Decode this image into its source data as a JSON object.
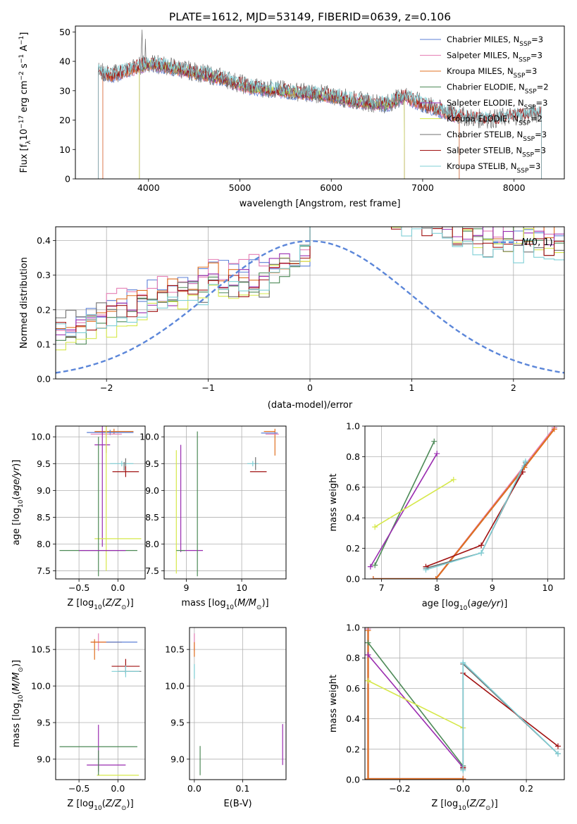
{
  "figure_title": "PLATE=1612, MJD=53149, FIBERID=0639, z=0.106",
  "colors": {
    "Chabrier MILES": "#5b7fd6",
    "Salpeter MILES": "#e57fb5",
    "Kroupa MILES": "#e07020",
    "Chabrier ELODIE": "#4d8a57",
    "Salpeter ELODIE": "#9a2cb0",
    "Kroupa ELODIE": "#d6e84a",
    "Chabrier STELIB": "#707070",
    "Salpeter STELIB": "#a01010",
    "Kroupa STELIB": "#7fcfd6"
  },
  "chart_data": [
    {
      "id": "spectrum",
      "type": "line",
      "title": "PLATE=1612, MJD=53149, FIBERID=0639, z=0.106",
      "xlabel": "wavelength [Angstrom, rest frame]",
      "ylabel": "Flux [f",
      "xlim": [
        3200,
        8550
      ],
      "ylim": [
        0,
        52
      ],
      "xticks": [
        4000,
        5000,
        6000,
        7000,
        8000
      ],
      "yticks": [
        0,
        10,
        20,
        30,
        40,
        50
      ],
      "grid": false,
      "legend_position": "top-right",
      "legend": [
        {
          "name": "Chabrier MILES, N",
          "suffix": "=3"
        },
        {
          "name": "Salpeter MILES, N",
          "suffix": "=3"
        },
        {
          "name": "Kroupa MILES, N",
          "suffix": "=3"
        },
        {
          "name": "Chabrier ELODIE, N",
          "suffix": "=2"
        },
        {
          "name": "Salpeter ELODIE, N",
          "suffix": "=3"
        },
        {
          "name": "Kroupa ELODIE, N",
          "suffix": "=2"
        },
        {
          "name": "Chabrier STELIB, N",
          "suffix": "=3"
        },
        {
          "name": "Salpeter STELIB, N",
          "suffix": "=3"
        },
        {
          "name": "Kroupa STELIB, N",
          "suffix": "=3"
        }
      ],
      "subscript": "SSP",
      "continuum_x": [
        3450,
        3600,
        3800,
        4000,
        4200,
        4500,
        4800,
        5100,
        5400,
        5700,
        6000,
        6300,
        6600,
        6800,
        7000,
        7200,
        7400,
        7600,
        7800,
        8000,
        8300
      ],
      "continuum_y": [
        36,
        35,
        37,
        39,
        38,
        36,
        34,
        31,
        30,
        29,
        28,
        26,
        25,
        28,
        25,
        23,
        21,
        20,
        20,
        21,
        22
      ],
      "spectrum_range": {
        "Chabrier MILES": [
          3500,
          7400
        ],
        "Salpeter MILES": [
          3500,
          7400
        ],
        "Kroupa MILES": [
          3500,
          7400
        ],
        "Chabrier ELODIE": [
          3900,
          6800
        ],
        "Salpeter ELODIE": [
          3900,
          6800
        ],
        "Kroupa ELODIE": [
          3900,
          6800
        ],
        "Chabrier STELIB": [
          3450,
          8300
        ],
        "Salpeter STELIB": [
          3450,
          8300
        ],
        "Kroupa STELIB": [
          3450,
          8300
        ]
      }
    },
    {
      "id": "residuals",
      "type": "line",
      "xlabel": "(data-model)/error",
      "ylabel": "Normed distribution",
      "xlim": [
        -2.5,
        2.5
      ],
      "ylim": [
        0,
        0.44
      ],
      "xticks": [
        -2,
        -1,
        0,
        1,
        2
      ],
      "yticks": [
        0.0,
        0.1,
        0.2,
        0.3,
        0.4
      ],
      "grid": true,
      "legend_position": "top-right",
      "reference_curve": {
        "name": "N(0,1)",
        "mean": 0,
        "sigma": 1,
        "color": "#5b86d9"
      },
      "bin_width": 0.1,
      "series_shape": {
        "Chabrier MILES": [
          0.15,
          0.32,
          0.4,
          0.12
        ],
        "Salpeter MILES": [
          0.14,
          0.33,
          0.4,
          0.11
        ],
        "Kroupa MILES": [
          0.14,
          0.32,
          0.4,
          0.11
        ],
        "Chabrier ELODIE": [
          0.1,
          0.28,
          0.45,
          0.13
        ],
        "Salpeter ELODIE": [
          0.11,
          0.29,
          0.44,
          0.12
        ],
        "Kroupa ELODIE": [
          0.06,
          0.26,
          0.5,
          0.14
        ],
        "Chabrier STELIB": [
          0.15,
          0.27,
          0.5,
          0.11
        ],
        "Salpeter STELIB": [
          0.13,
          0.27,
          0.48,
          0.11
        ],
        "Kroupa STELIB": [
          0.12,
          0.26,
          0.48,
          0.11
        ]
      }
    },
    {
      "id": "age-vs-Z",
      "type": "scatter",
      "xlabel": "Z [log",
      "ylabel": "age  [log",
      "xlim": [
        -0.8,
        0.35
      ],
      "ylim": [
        7.35,
        10.2
      ],
      "xticks": [
        -0.5,
        0.0
      ],
      "yticks": [
        7.5,
        8.0,
        8.5,
        9.0,
        9.5,
        10.0
      ],
      "grid": true,
      "errorbars": [
        {
          "series": "Kroupa MILES",
          "x": -0.05,
          "xerr": 0.25,
          "y": 10.1,
          "yerr": 0.05
        },
        {
          "series": "Chabrier MILES",
          "x": -0.1,
          "xerr": 0.3,
          "y": 10.08,
          "yerr": 0.05
        },
        {
          "series": "Salpeter MILES",
          "x": -0.15,
          "xerr": 0.2,
          "y": 10.05,
          "yerr": 0.35
        },
        {
          "series": "Salpeter ELODIE",
          "x": -0.2,
          "xerr": 0.1,
          "y": 9.85,
          "yerr": 0.0
        },
        {
          "series": "Salpeter ELODIE",
          "x": -0.2,
          "xerr": 0.0,
          "y": 9.85,
          "yerr": 1.9
        },
        {
          "series": "Kroupa ELODIE",
          "x": -0.15,
          "xerr": 0.0,
          "y": 9.8,
          "yerr": 2.3
        },
        {
          "series": "Kroupa ELODIE",
          "x": 0.0,
          "xerr": 0.3,
          "y": 8.1,
          "yerr": 0.0
        },
        {
          "series": "Chabrier ELODIE",
          "x": -0.25,
          "xerr": 0.0,
          "y": 8.7,
          "yerr": 1.3
        },
        {
          "series": "Chabrier ELODIE",
          "x": -0.25,
          "xerr": 0.5,
          "y": 7.88,
          "yerr": 0.0
        },
        {
          "series": "Salpeter ELODIE",
          "x": -0.2,
          "xerr": 0.3,
          "y": 7.88,
          "yerr": 0.0
        },
        {
          "series": "Kroupa STELIB",
          "x": 0.05,
          "xerr": 0.15,
          "y": 9.5,
          "yerr": 0.05
        },
        {
          "series": "Chabrier STELIB",
          "x": 0.1,
          "xerr": 0.0,
          "y": 9.5,
          "yerr": 0.1
        },
        {
          "series": "Salpeter STELIB",
          "x": 0.1,
          "xerr": 0.17,
          "y": 9.35,
          "yerr": 0.1
        },
        {
          "series": "Chabrier STELIB",
          "x": 0.08,
          "xerr": 0.0,
          "y": 9.45,
          "yerr": 0.08
        }
      ]
    },
    {
      "id": "age-vs-mass",
      "type": "scatter",
      "xlabel": "mass [log",
      "ylabel": "",
      "xlim": [
        8.6,
        10.8
      ],
      "ylim": [
        7.35,
        10.2
      ],
      "xticks": [
        9,
        10
      ],
      "yticks": [
        7.5,
        8.0,
        8.5,
        9.0,
        9.5,
        10.0
      ],
      "grid": true,
      "errorbars": [
        {
          "series": "Kroupa MILES",
          "x": 10.5,
          "xerr": 0.1,
          "y": 10.1,
          "yerr": 0.0
        },
        {
          "series": "Kroupa MILES",
          "x": 10.6,
          "xerr": 0.0,
          "y": 9.9,
          "yerr": 0.25
        },
        {
          "series": "Salpeter MILES",
          "x": 10.55,
          "xerr": 0.12,
          "y": 10.05,
          "yerr": 0.0
        },
        {
          "series": "Chabrier MILES",
          "x": 10.5,
          "xerr": 0.15,
          "y": 10.07,
          "yerr": 0.0
        },
        {
          "series": "Kroupa STELIB",
          "x": 10.2,
          "xerr": 0.1,
          "y": 9.5,
          "yerr": 0.05
        },
        {
          "series": "Chabrier STELIB",
          "x": 10.25,
          "xerr": 0.0,
          "y": 9.5,
          "yerr": 0.12
        },
        {
          "series": "Salpeter STELIB",
          "x": 10.3,
          "xerr": 0.15,
          "y": 9.35,
          "yerr": 0.0
        },
        {
          "series": "Salpeter ELODIE",
          "x": 8.9,
          "xerr": 0.0,
          "y": 8.85,
          "yerr": 1.0
        },
        {
          "series": "Salpeter ELODIE",
          "x": 9.1,
          "xerr": 0.2,
          "y": 7.88,
          "yerr": 0.0
        },
        {
          "series": "Chabrier ELODIE",
          "x": 9.2,
          "xerr": 0.0,
          "y": 8.75,
          "yerr": 1.35
        },
        {
          "series": "Kroupa ELODIE",
          "x": 8.82,
          "xerr": 0.0,
          "y": 8.6,
          "yerr": 1.15
        },
        {
          "series": "Chabrier ELODIE",
          "x": 8.9,
          "xerr": 0.08,
          "y": 7.88,
          "yerr": 0.0
        }
      ]
    },
    {
      "id": "mass-weight-vs-age",
      "type": "line",
      "xlabel": "age  [log",
      "ylabel": "mass weight",
      "xlim": [
        6.7,
        10.3
      ],
      "ylim": [
        0,
        1
      ],
      "xticks": [
        7,
        8,
        9,
        10
      ],
      "yticks": [
        0.0,
        0.2,
        0.4,
        0.6,
        0.8,
        1.0
      ],
      "grid": true,
      "series": [
        {
          "name": "Chabrier MILES",
          "x": [
            6.85,
            7.98,
            9.58,
            10.12
          ],
          "y": [
            0.0,
            0.0,
            0.73,
            0.99
          ]
        },
        {
          "name": "Salpeter MILES",
          "x": [
            6.85,
            7.98,
            9.58,
            10.12
          ],
          "y": [
            0.0,
            0.0,
            0.74,
            0.99
          ]
        },
        {
          "name": "Kroupa MILES",
          "x": [
            6.85,
            7.98,
            9.58,
            10.12
          ],
          "y": [
            0.0,
            0.0,
            0.73,
            0.98
          ]
        },
        {
          "name": "Chabrier ELODIE",
          "x": [
            6.88,
            7.95
          ],
          "y": [
            0.09,
            0.9
          ]
        },
        {
          "name": "Salpeter ELODIE",
          "x": [
            6.8,
            8.0
          ],
          "y": [
            0.08,
            0.82
          ]
        },
        {
          "name": "Kroupa ELODIE",
          "x": [
            6.88,
            8.3
          ],
          "y": [
            0.34,
            0.65
          ]
        },
        {
          "name": "Chabrier STELIB",
          "x": [
            7.8,
            8.8,
            9.6
          ],
          "y": [
            0.07,
            0.17,
            0.76
          ]
        },
        {
          "name": "Salpeter STELIB",
          "x": [
            7.8,
            8.8,
            9.55
          ],
          "y": [
            0.08,
            0.22,
            0.7
          ]
        },
        {
          "name": "Kroupa STELIB",
          "x": [
            7.8,
            8.8,
            9.6
          ],
          "y": [
            0.06,
            0.17,
            0.77
          ]
        }
      ]
    },
    {
      "id": "mass-vs-Z",
      "type": "scatter",
      "xlabel": "Z [log",
      "ylabel": "mass [log",
      "xlim": [
        -0.8,
        0.35
      ],
      "ylim": [
        8.72,
        10.8
      ],
      "xticks": [
        -0.5,
        0.0
      ],
      "yticks": [
        9.0,
        9.5,
        10.0,
        10.5
      ],
      "grid": true,
      "errorbars": [
        {
          "series": "Salpeter MILES",
          "x": -0.25,
          "xerr": 0.1,
          "y": 10.6,
          "yerr": 0.12
        },
        {
          "series": "Kroupa MILES",
          "x": -0.15,
          "xerr": 0.2,
          "y": 10.6,
          "yerr": 0.0
        },
        {
          "series": "Kroupa MILES",
          "x": -0.3,
          "xerr": 0.0,
          "y": 10.5,
          "yerr": 0.14
        },
        {
          "series": "Chabrier MILES",
          "x": 0.05,
          "xerr": 0.2,
          "y": 10.6,
          "yerr": 0.0
        },
        {
          "series": "Salpeter STELIB",
          "x": 0.1,
          "xerr": 0.18,
          "y": 10.27,
          "yerr": 0.1
        },
        {
          "series": "Chabrier STELIB",
          "x": 0.15,
          "xerr": 0.15,
          "y": 10.2,
          "yerr": 0.0
        },
        {
          "series": "Kroupa STELIB",
          "x": 0.1,
          "xerr": 0.18,
          "y": 10.2,
          "yerr": 0.08
        },
        {
          "series": "Salpeter ELODIE",
          "x": -0.25,
          "xerr": 0.0,
          "y": 9.15,
          "yerr": 0.32
        },
        {
          "series": "Chabrier ELODIE",
          "x": -0.25,
          "xerr": 0.5,
          "y": 9.17,
          "yerr": 0.0
        },
        {
          "series": "Salpeter ELODIE",
          "x": -0.15,
          "xerr": 0.25,
          "y": 8.92,
          "yerr": 0.0
        },
        {
          "series": "Kroupa ELODIE",
          "x": 0.0,
          "xerr": 0.27,
          "y": 8.78,
          "yerr": 0.0
        },
        {
          "series": "Chabrier ELODIE",
          "x": -0.25,
          "xerr": 0.0,
          "y": 8.95,
          "yerr": 0.17
        }
      ]
    },
    {
      "id": "mass-vs-ebv",
      "type": "scatter",
      "xlabel": "E(B-V)",
      "ylabel": "",
      "xlim": [
        -0.01,
        0.19
      ],
      "ylim": [
        8.72,
        10.8
      ],
      "xticks": [
        0.0,
        0.1
      ],
      "yticks": [
        9.0,
        9.5,
        10.0,
        10.5
      ],
      "grid": true,
      "errorbars": [
        {
          "series": "Salpeter MILES",
          "x": 0.0,
          "xerr": 0.0,
          "y": 10.6,
          "yerr": 0.12
        },
        {
          "series": "Kroupa MILES",
          "x": 0.0,
          "xerr": 0.0,
          "y": 10.5,
          "yerr": 0.1
        },
        {
          "series": "Kroupa STELIB",
          "x": 0.0,
          "xerr": 0.0,
          "y": 10.2,
          "yerr": 0.1
        },
        {
          "series": "Chabrier ELODIE",
          "x": 0.012,
          "xerr": 0.0,
          "y": 8.98,
          "yerr": 0.2
        },
        {
          "series": "Salpeter ELODIE",
          "x": 0.183,
          "xerr": 0.0,
          "y": 9.2,
          "yerr": 0.28
        }
      ]
    },
    {
      "id": "mass-weight-vs-Z",
      "type": "line",
      "xlabel": "Z [log",
      "ylabel": "mass weight",
      "xlim": [
        -0.31,
        0.32
      ],
      "ylim": [
        0,
        1
      ],
      "xticks": [
        -0.2,
        0.0,
        0.2
      ],
      "yticks": [
        0.0,
        0.2,
        0.4,
        0.6,
        0.8,
        1.0
      ],
      "grid": true,
      "series": [
        {
          "name": "Chabrier MILES",
          "x": [
            -0.3,
            -0.3,
            0.0
          ],
          "y": [
            0.99,
            0.005,
            0.005
          ]
        },
        {
          "name": "Salpeter MILES",
          "x": [
            -0.3,
            -0.3,
            0.0
          ],
          "y": [
            0.99,
            0.005,
            0.005
          ]
        },
        {
          "name": "Kroupa MILES",
          "x": [
            -0.3,
            -0.3,
            0.0
          ],
          "y": [
            0.98,
            0.005,
            0.005
          ]
        },
        {
          "name": "Chabrier ELODIE",
          "x": [
            -0.3,
            0.0
          ],
          "y": [
            0.9,
            0.09
          ]
        },
        {
          "name": "Salpeter ELODIE",
          "x": [
            -0.3,
            0.0
          ],
          "y": [
            0.82,
            0.08
          ]
        },
        {
          "name": "Kroupa ELODIE",
          "x": [
            -0.3,
            0.0
          ],
          "y": [
            0.65,
            0.34
          ]
        },
        {
          "name": "Chabrier STELIB",
          "x": [
            0.0,
            0.0,
            0.3
          ],
          "y": [
            0.07,
            0.76,
            0.17
          ]
        },
        {
          "name": "Salpeter STELIB",
          "x": [
            0.0,
            0.0,
            0.3
          ],
          "y": [
            0.08,
            0.7,
            0.22
          ]
        },
        {
          "name": "Kroupa STELIB",
          "x": [
            0.0,
            0.0,
            0.3
          ],
          "y": [
            0.06,
            0.77,
            0.17
          ]
        }
      ]
    }
  ]
}
